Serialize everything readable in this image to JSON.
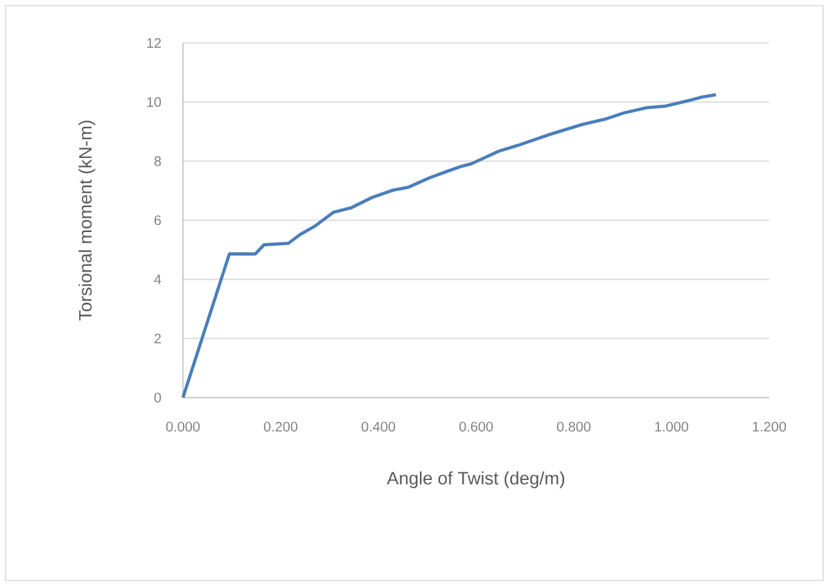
{
  "chart_data": {
    "type": "line",
    "xlabel": "Angle of Twist (deg/m)",
    "ylabel": "Torsional moment (kN-m)",
    "x": [
      0,
      0.095,
      0.148,
      0.166,
      0.216,
      0.24,
      0.27,
      0.308,
      0.344,
      0.387,
      0.43,
      0.462,
      0.505,
      0.543,
      0.571,
      0.59,
      0.647,
      0.685,
      0.75,
      0.817,
      0.864,
      0.902,
      0.949,
      0.987,
      1.035,
      1.063,
      1.091
    ],
    "series": [
      {
        "color": "#4a7ebb",
        "values": [
          0,
          4.86,
          4.86,
          5.17,
          5.22,
          5.52,
          5.8,
          6.27,
          6.42,
          6.77,
          7.02,
          7.12,
          7.44,
          7.67,
          7.83,
          7.91,
          8.34,
          8.53,
          8.9,
          9.24,
          9.42,
          9.63,
          9.81,
          9.86,
          10.05,
          10.17,
          10.25
        ]
      }
    ],
    "xlim": [
      0,
      1.2
    ],
    "ylim": [
      0,
      12
    ],
    "xticks": [
      {
        "value": 0,
        "label": "0.000"
      },
      {
        "value": 0.2,
        "label": "0.200"
      },
      {
        "value": 0.4,
        "label": "0.400"
      },
      {
        "value": 0.6,
        "label": "0.600"
      },
      {
        "value": 0.8,
        "label": "0.800"
      },
      {
        "value": 1.0,
        "label": "1.000"
      },
      {
        "value": 1.2,
        "label": "1.200"
      }
    ],
    "yticks": [
      0,
      2,
      4,
      6,
      8,
      10,
      12
    ],
    "grid": "y",
    "marker": "none",
    "line_style": "solid"
  }
}
